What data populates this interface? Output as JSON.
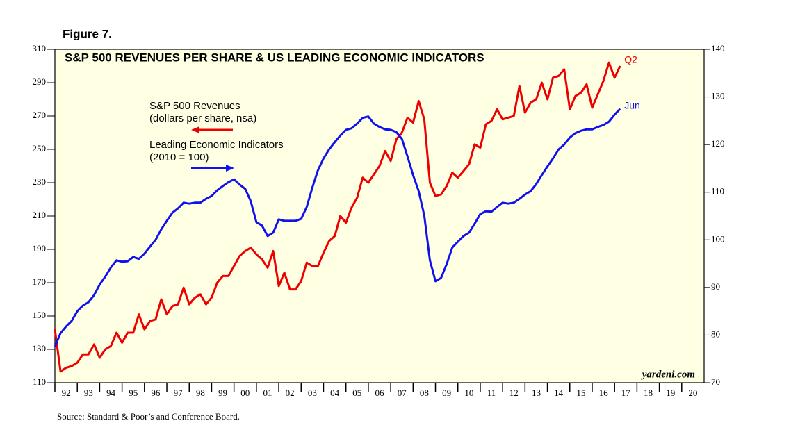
{
  "chart_data": {
    "type": "line",
    "figure_label": "Figure 7.",
    "title": "S&P 500 REVENUES PER SHARE & US LEADING ECONOMIC INDICATORS",
    "annotations": [
      "(dollars per share, nsa)",
      "(2010 = 100)"
    ],
    "watermark": "yardeni.com",
    "source": "Source: Standard & Poor’s and Conference Board.",
    "x": [
      1992,
      1992.25,
      1992.5,
      1992.75,
      1993,
      1993.25,
      1993.5,
      1993.75,
      1994,
      1994.25,
      1994.5,
      1994.75,
      1995,
      1995.25,
      1995.5,
      1995.75,
      1996,
      1996.25,
      1996.5,
      1996.75,
      1997,
      1997.25,
      1997.5,
      1997.75,
      1998,
      1998.25,
      1998.5,
      1998.75,
      1999,
      1999.25,
      1999.5,
      1999.75,
      2000,
      2000.25,
      2000.5,
      2000.75,
      2001,
      2001.25,
      2001.5,
      2001.75,
      2002,
      2002.25,
      2002.5,
      2002.75,
      2003,
      2003.25,
      2003.5,
      2003.75,
      2004,
      2004.25,
      2004.5,
      2004.75,
      2005,
      2005.25,
      2005.5,
      2005.75,
      2006,
      2006.25,
      2006.5,
      2006.75,
      2007,
      2007.25,
      2007.5,
      2007.75,
      2008,
      2008.25,
      2008.5,
      2008.75,
      2009,
      2009.25,
      2009.5,
      2009.75,
      2010,
      2010.25,
      2010.5,
      2010.75,
      2011,
      2011.25,
      2011.5,
      2011.75,
      2012,
      2012.25,
      2012.5,
      2012.75,
      2013,
      2013.25,
      2013.5,
      2013.75,
      2014,
      2014.25,
      2014.5,
      2014.75,
      2015,
      2015.25,
      2015.5,
      2015.75,
      2016,
      2016.25,
      2016.5,
      2016.75,
      2017,
      2017.25
    ],
    "series": [
      {
        "name": "S&P 500 Revenues",
        "end_label": "Q2",
        "color": "#ee0000",
        "axis": "y",
        "values": [
          142,
          116.7,
          119,
          120,
          122,
          127,
          127,
          133,
          125,
          130,
          132,
          140,
          134,
          140,
          140,
          151,
          142,
          147,
          148,
          160,
          151,
          156,
          157,
          167,
          157,
          161,
          163,
          157,
          161,
          170,
          174,
          174,
          180,
          186,
          189,
          191,
          187,
          184,
          179,
          189,
          168,
          176,
          166,
          166,
          171,
          182,
          180,
          180,
          188,
          195,
          198,
          210,
          206,
          215,
          221,
          233,
          230,
          235,
          240,
          249,
          243,
          256,
          260,
          269,
          266,
          279,
          268,
          230,
          222,
          223,
          228,
          236,
          233,
          237,
          241,
          253,
          251,
          265,
          267,
          274,
          268,
          269,
          270,
          288,
          272,
          278,
          280,
          290,
          280,
          293,
          294,
          298,
          274,
          282,
          284,
          289,
          275,
          283,
          291,
          302,
          293,
          300
        ]
      },
      {
        "name": "Leading Economic Indicators",
        "end_label": "Jun",
        "color": "#1010f0",
        "axis": "y2",
        "values": [
          77.6,
          80.4,
          81.8,
          83,
          85,
          86.2,
          86.9,
          88.4,
          90.6,
          92.3,
          94.2,
          95.7,
          95.4,
          95.5,
          96.4,
          96,
          97.1,
          98.6,
          100,
          102.2,
          104,
          105.7,
          106.6,
          107.8,
          107.6,
          107.8,
          107.8,
          108.6,
          109.2,
          110.4,
          111.3,
          112.1,
          112.7,
          111.6,
          110.7,
          108.1,
          103.7,
          103,
          100.8,
          101.5,
          104.3,
          104,
          104,
          104,
          104.4,
          106.9,
          111,
          114.6,
          117.1,
          119,
          120.5,
          121.9,
          123.1,
          123.4,
          124.4,
          125.6,
          125.9,
          124.4,
          123.7,
          123.2,
          123.1,
          122.6,
          121.2,
          117.5,
          113.6,
          110.2,
          105.1,
          95.7,
          91.3,
          92,
          94.9,
          98.4,
          99.6,
          100.8,
          101.5,
          103.4,
          105.4,
          106,
          105.9,
          106.9,
          107.8,
          107.6,
          107.8,
          108.6,
          109.5,
          110.2,
          111.7,
          113.6,
          115.4,
          117.1,
          119,
          120,
          121.5,
          122.4,
          122.9,
          123.2,
          123.2,
          123.7,
          124.1,
          124.8,
          126.3,
          127.5
        ]
      }
    ],
    "xlim": [
      1992,
      2021
    ],
    "xticks": [
      {
        "value": 1992.5,
        "label": "92"
      },
      {
        "value": 1993.5,
        "label": "93"
      },
      {
        "value": 1994.5,
        "label": "94"
      },
      {
        "value": 1995.5,
        "label": "95"
      },
      {
        "value": 1996.5,
        "label": "96"
      },
      {
        "value": 1997.5,
        "label": "97"
      },
      {
        "value": 1998.5,
        "label": "98"
      },
      {
        "value": 1999.5,
        "label": "99"
      },
      {
        "value": 2000.5,
        "label": "00"
      },
      {
        "value": 2001.5,
        "label": "01"
      },
      {
        "value": 2002.5,
        "label": "02"
      },
      {
        "value": 2003.5,
        "label": "03"
      },
      {
        "value": 2004.5,
        "label": "04"
      },
      {
        "value": 2005.5,
        "label": "05"
      },
      {
        "value": 2006.5,
        "label": "06"
      },
      {
        "value": 2007.5,
        "label": "07"
      },
      {
        "value": 2008.5,
        "label": "08"
      },
      {
        "value": 2009.5,
        "label": "09"
      },
      {
        "value": 2010.5,
        "label": "10"
      },
      {
        "value": 2011.5,
        "label": "11"
      },
      {
        "value": 2012.5,
        "label": "12"
      },
      {
        "value": 2013.5,
        "label": "13"
      },
      {
        "value": 2014.5,
        "label": "14"
      },
      {
        "value": 2015.5,
        "label": "15"
      },
      {
        "value": 2016.5,
        "label": "16"
      },
      {
        "value": 2017.5,
        "label": "17"
      },
      {
        "value": 2018.5,
        "label": "18"
      },
      {
        "value": 2019.5,
        "label": "19"
      },
      {
        "value": 2020.5,
        "label": "20"
      }
    ],
    "ylim": [
      110,
      310
    ],
    "yticks": [
      110,
      130,
      150,
      170,
      190,
      210,
      230,
      250,
      270,
      290,
      310
    ],
    "y2lim": [
      70,
      140
    ],
    "y2ticks": [
      70,
      80,
      90,
      100,
      110,
      120,
      130,
      140
    ],
    "background": "#ffffe3"
  }
}
